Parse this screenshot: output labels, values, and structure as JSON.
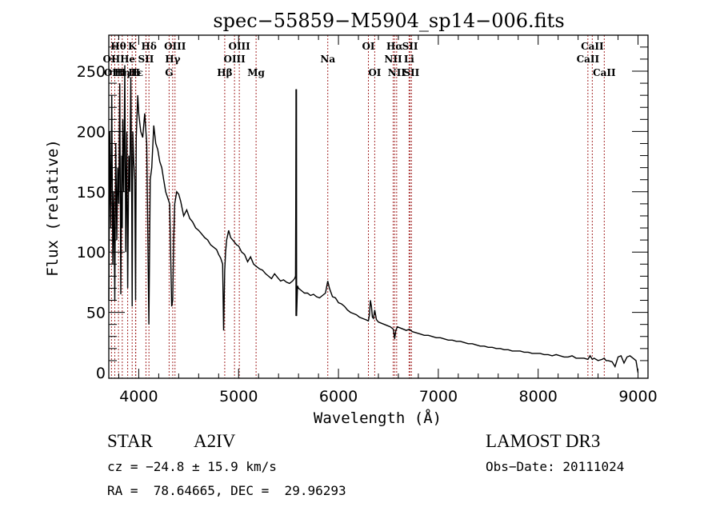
{
  "chart_data": {
    "type": "line",
    "title": "spec−55859−M5904_sp14−006.fits",
    "xlabel": "Wavelength (Å)",
    "ylabel": "Flux (relative)",
    "xlim": [
      3700,
      9100
    ],
    "ylim": [
      -5,
      280
    ],
    "x_ticks": [
      4000,
      5000,
      6000,
      7000,
      8000,
      9000
    ],
    "x_tick_labels": [
      "4000",
      "5000",
      "6000",
      "7000",
      "8000",
      "9000"
    ],
    "y_ticks": [
      0,
      50,
      100,
      150,
      200,
      250
    ],
    "y_tick_labels": [
      "0",
      "50",
      "100",
      "150",
      "200",
      "250"
    ],
    "grid": false,
    "legend": "none",
    "series": [
      {
        "name": "spectrum",
        "color": "#000000",
        "x": [
          3700,
          3710,
          3720,
          3730,
          3740,
          3750,
          3760,
          3770,
          3780,
          3790,
          3800,
          3810,
          3820,
          3830,
          3835,
          3840,
          3850,
          3860,
          3870,
          3880,
          3889,
          3900,
          3910,
          3920,
          3930,
          3934,
          3940,
          3950,
          3960,
          3968,
          3975,
          3990,
          4000,
          4020,
          4040,
          4060,
          4080,
          4101,
          4115,
          4130,
          4150,
          4170,
          4190,
          4210,
          4230,
          4250,
          4270,
          4290,
          4310,
          4330,
          4340,
          4350,
          4360,
          4380,
          4400,
          4420,
          4450,
          4480,
          4510,
          4540,
          4570,
          4600,
          4630,
          4660,
          4690,
          4720,
          4750,
          4780,
          4800,
          4820,
          4840,
          4850,
          4861,
          4870,
          4880,
          4900,
          4920,
          4940,
          4960,
          4980,
          5000,
          5030,
          5060,
          5090,
          5120,
          5150,
          5180,
          5210,
          5240,
          5270,
          5300,
          5330,
          5360,
          5390,
          5420,
          5450,
          5480,
          5510,
          5540,
          5560,
          5570,
          5577,
          5580,
          5590,
          5600,
          5630,
          5660,
          5690,
          5720,
          5750,
          5780,
          5810,
          5840,
          5870,
          5893,
          5910,
          5940,
          5970,
          6000,
          6030,
          6060,
          6090,
          6120,
          6150,
          6180,
          6210,
          6240,
          6270,
          6300,
          6310,
          6320,
          6330,
          6340,
          6350,
          6363,
          6380,
          6400,
          6430,
          6460,
          6490,
          6520,
          6550,
          6563,
          6575,
          6590,
          6620,
          6650,
          6680,
          6710,
          6740,
          6780,
          6820,
          6860,
          6900,
          6940,
          6980,
          7020,
          7060,
          7100,
          7140,
          7180,
          7220,
          7260,
          7300,
          7340,
          7380,
          7420,
          7460,
          7500,
          7540,
          7580,
          7620,
          7660,
          7700,
          7740,
          7780,
          7820,
          7860,
          7900,
          7940,
          7980,
          8020,
          8060,
          8100,
          8140,
          8180,
          8220,
          8260,
          8300,
          8340,
          8380,
          8420,
          8460,
          8498,
          8520,
          8542,
          8560,
          8600,
          8640,
          8662,
          8680,
          8700,
          8740,
          8770,
          8800,
          8830,
          8860,
          8890,
          8920,
          8950,
          8980,
          9000
        ],
        "y": [
          60,
          200,
          120,
          230,
          90,
          150,
          60,
          190,
          110,
          170,
          140,
          240,
          65,
          180,
          120,
          210,
          150,
          255,
          100,
          200,
          70,
          180,
          150,
          245,
          140,
          55,
          200,
          175,
          160,
          60,
          195,
          230,
          215,
          200,
          195,
          215,
          190,
          40,
          160,
          170,
          205,
          190,
          185,
          175,
          170,
          160,
          150,
          145,
          140,
          55,
          60,
          110,
          140,
          150,
          148,
          142,
          130,
          135,
          128,
          125,
          120,
          118,
          115,
          112,
          110,
          106,
          104,
          102,
          98,
          95,
          90,
          35,
          85,
          100,
          110,
          118,
          112,
          110,
          108,
          106,
          105,
          100,
          98,
          92,
          96,
          90,
          88,
          86,
          85,
          82,
          80,
          78,
          82,
          79,
          76,
          77,
          75,
          74,
          76,
          78,
          80,
          235,
          47,
          72,
          70,
          68,
          66,
          66,
          64,
          65,
          63,
          62,
          64,
          66,
          76,
          70,
          63,
          62,
          58,
          57,
          55,
          52,
          50,
          49,
          48,
          46,
          45,
          44,
          43,
          48,
          60,
          55,
          46,
          45,
          52,
          44,
          42,
          41,
          40,
          39,
          38,
          36,
          28,
          35,
          38,
          37,
          36,
          35,
          36,
          34,
          33,
          32,
          31,
          31,
          30,
          29,
          29,
          28,
          27,
          27,
          26,
          26,
          25,
          24,
          24,
          23,
          22,
          22,
          21,
          21,
          20,
          20,
          19,
          19,
          18,
          18,
          18,
          17,
          17,
          16,
          16,
          16,
          15,
          15,
          14,
          15,
          14,
          13,
          13,
          14,
          12,
          12,
          12,
          11,
          14,
          11,
          12,
          10,
          11,
          12,
          10,
          10,
          9,
          5,
          13,
          14,
          8,
          13,
          14,
          12,
          10,
          0
        ]
      },
      {
        "name": "sky-line",
        "color": "#000000",
        "x": [
          5577,
          5577
        ],
        "y": [
          47,
          235
        ]
      }
    ],
    "line_markers": [
      {
        "label": "Hθ",
        "wavelength": 3797,
        "row": 1
      },
      {
        "label": "OII",
        "wavelength": 3727,
        "row": 2
      },
      {
        "label": "OIII",
        "wavelength": 3760,
        "row": 3
      },
      {
        "label": "Hη",
        "wavelength": 3835,
        "row": 3
      },
      {
        "label": "He",
        "wavelength": 3889,
        "row": 2
      },
      {
        "label": "K",
        "wavelength": 3934,
        "row": 1
      },
      {
        "label": "Hε",
        "wavelength": 3970,
        "row": 3
      },
      {
        "label": "H",
        "wavelength": 3968,
        "row": 3
      },
      {
        "label": "SII",
        "wavelength": 4072,
        "row": 2
      },
      {
        "label": "Hδ",
        "wavelength": 4102,
        "row": 1
      },
      {
        "label": "G",
        "wavelength": 4304,
        "row": 3
      },
      {
        "label": "Hγ",
        "wavelength": 4340,
        "row": 2
      },
      {
        "label": "OIII",
        "wavelength": 4363,
        "row": 1
      },
      {
        "label": "Hβ",
        "wavelength": 4861,
        "row": 3
      },
      {
        "label": "OIII",
        "wavelength": 4959,
        "row": 2
      },
      {
        "label": "OIII",
        "wavelength": 5007,
        "row": 1
      },
      {
        "label": "Mg",
        "wavelength": 5175,
        "row": 3
      },
      {
        "label": "Na",
        "wavelength": 5893,
        "row": 2
      },
      {
        "label": "OI",
        "wavelength": 6300,
        "row": 1
      },
      {
        "label": "OI",
        "wavelength": 6363,
        "row": 3
      },
      {
        "label": "NII",
        "wavelength": 6548,
        "row": 2
      },
      {
        "label": "Hα",
        "wavelength": 6563,
        "row": 1
      },
      {
        "label": "NII",
        "wavelength": 6583,
        "row": 3
      },
      {
        "label": "Li",
        "wavelength": 6707,
        "row": 2
      },
      {
        "label": "SII",
        "wavelength": 6717,
        "row": 1
      },
      {
        "label": "SII",
        "wavelength": 6731,
        "row": 3
      },
      {
        "label": "CaII",
        "wavelength": 8498,
        "row": 2
      },
      {
        "label": "CaII",
        "wavelength": 8542,
        "row": 1
      },
      {
        "label": "CaII",
        "wavelength": 8662,
        "row": 3
      }
    ],
    "marker_color": "#a52a2a"
  },
  "info": {
    "object_class": "STAR",
    "subclass": "A2IV",
    "survey": "LAMOST DR3",
    "redshift": "cz = −24.8 ± 15.9 km/s",
    "obs_date": "Obs−Date: 20111024",
    "coords": "RA =  78.64665, DEC =  29.96293"
  }
}
